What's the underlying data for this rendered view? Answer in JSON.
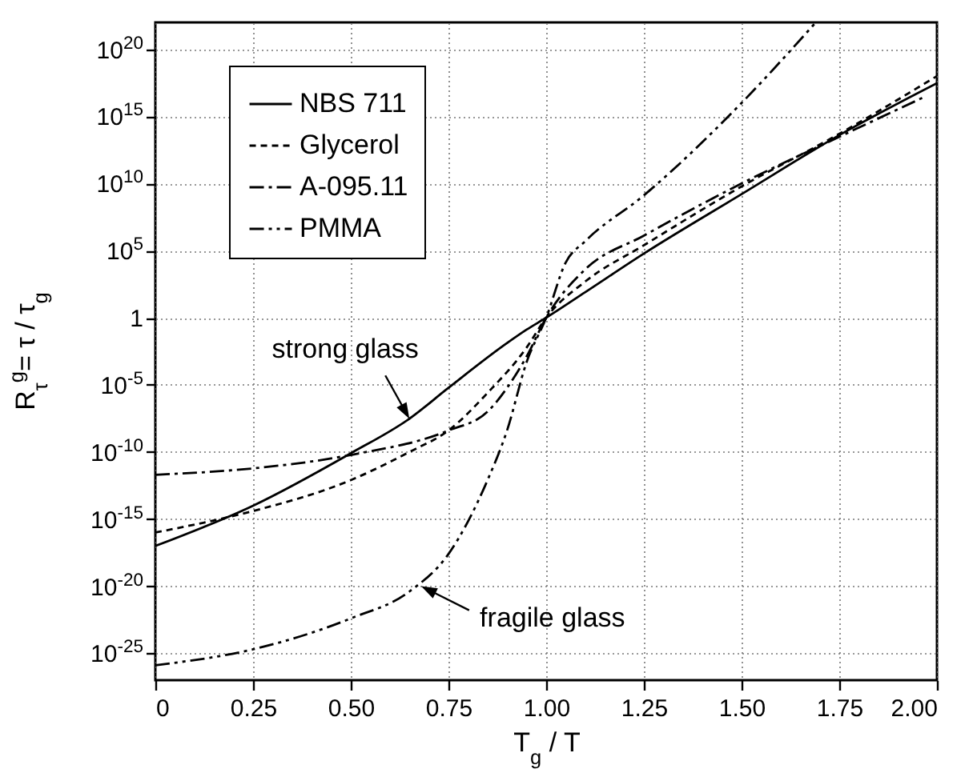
{
  "chart_data": {
    "type": "line",
    "xlabel": "T$_{g}$ / T",
    "ylabel": "R$_{τ}$$^{g}$= τ / τ$_{g}$",
    "log": "y",
    "grid": true,
    "legend": "top left",
    "xlim": [
      0,
      2
    ],
    "xticks": [
      0,
      0.25,
      {
        "value": 0.5,
        "label": "0.50"
      },
      0.75,
      {
        "value": 1,
        "label": "1.00"
      },
      1.25,
      {
        "value": 1.5,
        "label": "1.50"
      },
      1.75,
      {
        "value": 2,
        "label": "2.00"
      }
    ],
    "ylim": [
      1e-27,
      1e+22
    ],
    "yticks": [
      {
        "value": 1e-25,
        "label": "10$^{-25}$"
      },
      {
        "value": 1e-20,
        "label": "10$^{-20}$"
      },
      {
        "value": 1e-15,
        "label": "10$^{-15}$"
      },
      {
        "value": 1e-10,
        "label": "10$^{-10}$"
      },
      {
        "value": 1e-05,
        "label": "10$^{-5}$"
      },
      1,
      {
        "value": 100000.0,
        "label": "10$^{5}$"
      },
      {
        "value": 10000000000.0,
        "label": "10$^{10}$"
      },
      {
        "value": 1000000000000000.0,
        "label": "10$^{15}$"
      },
      {
        "value": 1e+20,
        "label": "10$^{20}$"
      }
    ],
    "series": [
      {
        "name": "NBS 711",
        "color": "#000000",
        "line_style": "solid",
        "x": [
          0,
          0.25,
          0.5,
          0.65,
          0.75,
          0.9,
          0.95,
          1,
          1.1,
          1.25,
          1.5,
          1.75,
          2
        ],
        "values": [
          1e-17,
          1e-14,
          8e-11,
          3e-08,
          6e-06,
          0.013,
          0.13,
          1,
          80,
          60000.0,
          1600000000.0,
          40000000000000.0,
          3e+17
        ]
      },
      {
        "name": "Glycerol",
        "color": "#000000",
        "line_style": "dashed",
        "x": [
          0,
          0.15,
          0.25,
          0.5,
          0.65,
          0.75,
          0.85,
          0.95,
          1,
          1.1,
          1.25,
          1.5,
          1.75,
          2
        ],
        "values": [
          1e-16,
          8e-16,
          4e-15,
          8e-13,
          1e-10,
          4e-09,
          2.5e-06,
          0.006,
          1,
          500,
          250000.0,
          6000000000.0,
          50000000000000.0,
          1e+18
        ]
      },
      {
        "name": "A-095.11",
        "color": "#000000",
        "line_style": "dashdot",
        "x": [
          0,
          0.25,
          0.5,
          0.75,
          0.85,
          0.9,
          0.95,
          1,
          1.1,
          1.25,
          1.5,
          1.75,
          1.97
        ],
        "values": [
          2e-12,
          6e-12,
          6e-11,
          4e-09,
          1e-07,
          6e-06,
          0.0013,
          1,
          4000.0,
          1300000.0,
          10000000000.0,
          30000000000000.0,
          3e+16
        ]
      },
      {
        "name": "PMMA",
        "color": "#000000",
        "line_style": "dashdotdot",
        "x": [
          0,
          0.25,
          0.5,
          0.65,
          0.75,
          0.85,
          0.9,
          0.95,
          1,
          1.05,
          1.1,
          1.25,
          1.5,
          1.69
        ],
        "values": [
          1.3e-26,
          2e-25,
          4e-23,
          4e-21,
          2.5e-18,
          8e-13,
          4e-09,
          0.0005,
          1,
          13000.0,
          500000.0,
          1300000000.0,
          1e+16,
          1e+22
        ]
      }
    ],
    "annotations": [
      {
        "text": "strong glass",
        "x": 0.65,
        "y": 3e-08
      },
      {
        "text": "fragile glass",
        "x": 0.68,
        "y": 1e-20
      }
    ]
  }
}
